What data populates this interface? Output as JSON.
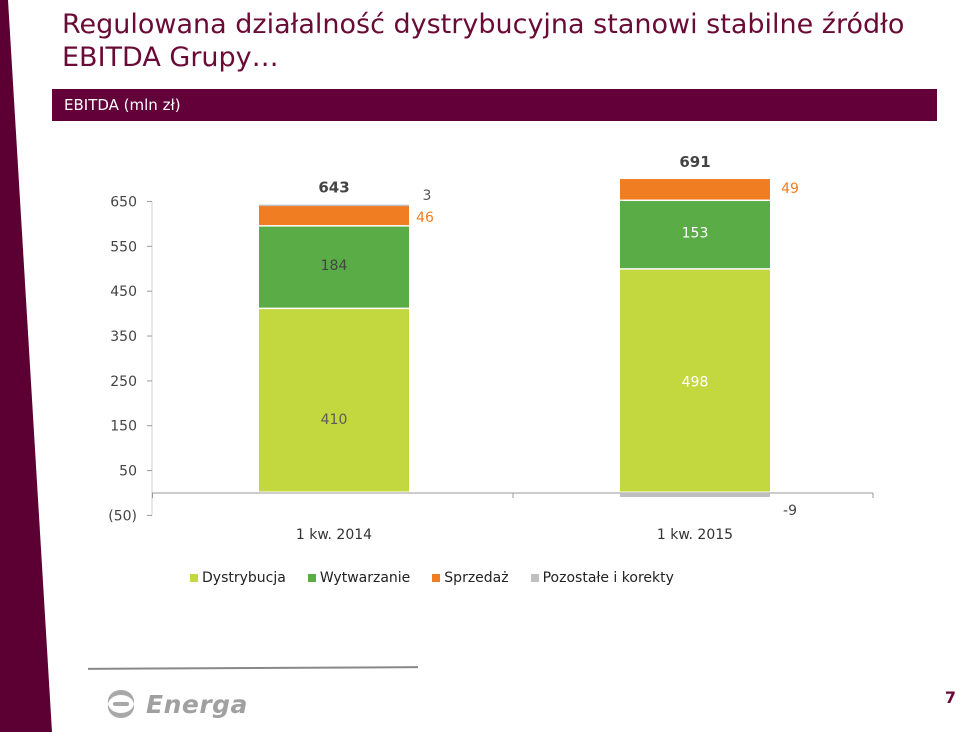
{
  "slide": {
    "title": "Regulowana działalność dystrybucyjna stanowi stabilne źródło EBITDA Grupy…",
    "header": "EBITDA (mln zł)",
    "page_number": "7",
    "logo_text": "Energa"
  },
  "colors": {
    "brand": "#63003a",
    "band": "#5c0033",
    "dystrybucja": "#c2d83e",
    "wytwarzanie": "#5aad46",
    "sprzedaz": "#f07d22",
    "pozostale": "#bfbfbf"
  },
  "chart_data": {
    "type": "bar",
    "stacked": true,
    "categories": [
      "1 kw. 2014",
      "1 kw. 2015"
    ],
    "series": [
      {
        "name": "Dystrybucja",
        "values": [
          410,
          498
        ]
      },
      {
        "name": "Wytwarzanie",
        "values": [
          184,
          153
        ]
      },
      {
        "name": "Sprzedaż",
        "values": [
          46,
          49
        ]
      },
      {
        "name": "Pozostałe i korekty",
        "values": [
          3,
          -9
        ]
      }
    ],
    "totals": [
      643,
      691
    ],
    "data_labels": {
      "totals": [
        "643",
        "691"
      ],
      "Dystrybucja": [
        "410",
        "498"
      ],
      "Wytwarzanie": [
        "184",
        "153"
      ],
      "Sprzedaż": [
        "46",
        "49"
      ],
      "Pozostałe i korekty": [
        "3",
        "-9"
      ]
    },
    "y_ticks": [
      650,
      550,
      450,
      350,
      250,
      150,
      50,
      -50
    ],
    "y_tick_labels": [
      "650",
      "550",
      "450",
      "350",
      "250",
      "150",
      "50",
      "(50)"
    ],
    "ylim": [
      -50,
      650
    ],
    "grid": false,
    "legend_position": "bottom"
  }
}
